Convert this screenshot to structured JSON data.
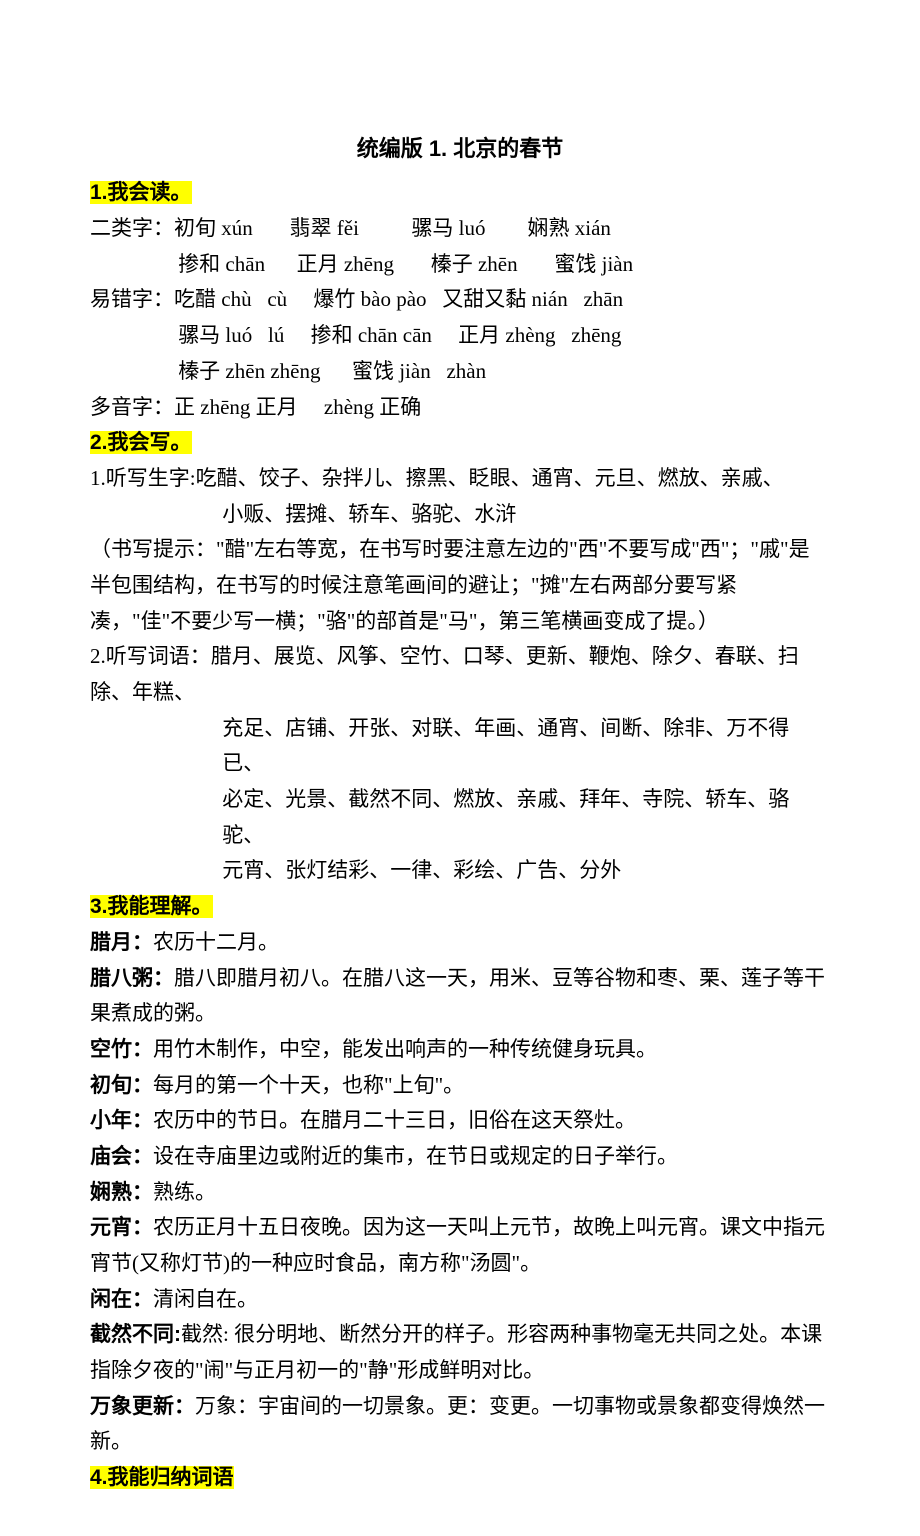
{
  "title": "统编版 1. 北京的春节",
  "sec1": {
    "heading": "1.我会读。",
    "row1_label": "二类字：",
    "row1": "初旬 xún       翡翠 fěi          骡马 luó        娴熟 xián",
    "row2": "掺和 chān      正月 zhēng       榛子 zhēn       蜜饯 jiàn",
    "row3_label": "易错字：",
    "row3": "吃醋 chù   cù     爆竹 bào pào   又甜又黏 nián   zhān",
    "row4": "骡马 luó   lú     掺和 chān cān     正月 zhèng   zhēng",
    "row5": "榛子 zhēn zhēng      蜜饯 jiàn   zhàn",
    "row6_label": "多音字：",
    "row6": "正 zhēng 正月     zhèng 正确"
  },
  "sec2": {
    "heading": "2.我会写。",
    "line1": "1.听写生字:吃醋、饺子、杂拌儿、擦黑、眨眼、通宵、元旦、燃放、亲戚、",
    "line1b": "小贩、摆摊、轿车、骆驼、水浒",
    "note": "（书写提示：\"醋\"左右等宽，在书写时要注意左边的\"西\"不要写成\"西\"；\"戚\"是半包围结构，在书写的时候注意笔画间的避让；\"摊\"左右两部分要写紧凑，\"佳\"不要少写一横；\"骆\"的部首是\"马\"，第三笔横画变成了提。）",
    "line2": "2.听写词语：腊月、展览、风筝、空竹、口琴、更新、鞭炮、除夕、春联、扫除、年糕、",
    "line2b": "充足、店铺、开张、对联、年画、通宵、间断、除非、万不得已、",
    "line2c": "必定、光景、截然不同、燃放、亲戚、拜年、寺院、轿车、骆驼、",
    "line2d": "元宵、张灯结彩、一律、彩绘、广告、分外"
  },
  "sec3": {
    "heading": "3.我能理解。",
    "defs": [
      {
        "term": "腊月：",
        "def": "农历十二月。"
      },
      {
        "term": "腊八粥：",
        "def": "腊八即腊月初八。在腊八这一天，用米、豆等谷物和枣、栗、莲子等干果煮成的粥。"
      },
      {
        "term": "空竹：",
        "def": "用竹木制作，中空，能发出响声的一种传统健身玩具。"
      },
      {
        "term": "初旬：",
        "def": "每月的第一个十天，也称\"上旬\"。"
      },
      {
        "term": "小年：",
        "def": "农历中的节日。在腊月二十三日，旧俗在这天祭灶。"
      },
      {
        "term": "庙会：",
        "def": "设在寺庙里边或附近的集市，在节日或规定的日子举行。"
      },
      {
        "term": "娴熟：",
        "def": "熟练。"
      },
      {
        "term": "元宵：",
        "def": "农历正月十五日夜晚。因为这一天叫上元节，故晚上叫元宵。课文中指元宵节(又称灯节)的一种应时食品，南方称\"汤圆\"。"
      },
      {
        "term": "闲在：",
        "def": "清闲自在。",
        "mono": true
      },
      {
        "term": "截然不同:",
        "def": "截然: 很分明地、断然分开的样子。形容两种事物毫无共同之处。本课指除夕夜的\"闹\"与正月初一的\"静\"形成鲜明对比。"
      },
      {
        "term": "万象更新：",
        "def": "万象：宇宙间的一切景象。更：变更。一切事物或景象都变得焕然一新。"
      }
    ]
  },
  "sec4": {
    "heading": "4.我能归纳词语"
  }
}
